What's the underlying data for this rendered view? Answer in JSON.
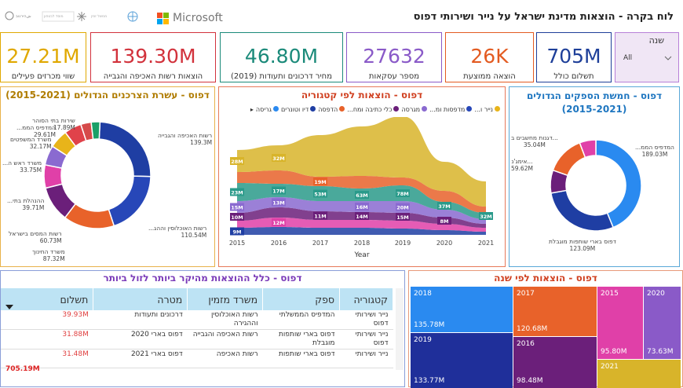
{
  "title": "לוח בקרה - הוצאות מדינת ישראל על נייר ושירותי דפוס",
  "logos": {
    "ms": "Microsoft"
  },
  "kpis": [
    {
      "value": "27.21M",
      "label": "שווי מכרזים פעילים",
      "color": "#e0a800"
    },
    {
      "value": "139.30M",
      "label": "הוצאות רשות האכיפה והגבייה",
      "color": "#d2323c"
    },
    {
      "value": "46.80M",
      "label": "מחיר דרכונים ותעודות (2019)",
      "color": "#1b8a7a"
    },
    {
      "value": "27632",
      "label": "מספר עסקאות",
      "color": "#8a5ac8"
    },
    {
      "value": "26K",
      "label": "הוצאה ממוצעת",
      "color": "#e35b21"
    },
    {
      "value": "705M",
      "label": "תשלום כולל",
      "color": "#1e3f99"
    }
  ],
  "slicer": {
    "title": "שנה",
    "value": "All"
  },
  "donut_left": {
    "title": "דפוס - עשרת הצרכנים הגדולים (2015-2021)",
    "labels": [
      {
        "t": "רשות האכיפה והגבייה",
        "v": "139.3M"
      },
      {
        "t": "רשות האוכלוסין וההג...",
        "v": "110.54M"
      },
      {
        "t": "משרד החינוך",
        "v": "87.32M"
      },
      {
        "t": "רשות המסים בישראל",
        "v": "60.73M"
      },
      {
        "t": "ההנהלת בתי...",
        "v": "39.71M"
      },
      {
        "t": "משרד ראש ה...",
        "v": "33.75M"
      },
      {
        "t": "משרד המשפטים",
        "v": "32.17M"
      },
      {
        "t": "המדפיס הממ...",
        "v": "29.61M"
      },
      {
        "t": "שירות בתי הסוהר",
        "v": "17.89M"
      }
    ]
  },
  "stream": {
    "title": "דפוס - הוצאות לפי קטגוריה",
    "legend": [
      "נייר ו...",
      "מדפסות ומ...",
      "מגרסה",
      "כלי כתיבה ומח...",
      "הדפסה",
      "דיו וטונרים",
      "גריסה"
    ],
    "xlabel": "Year",
    "years": [
      "2015",
      "2016",
      "2017",
      "2018",
      "2019",
      "2020",
      "2021"
    ],
    "labels": [
      "28M",
      "32M",
      "53M",
      "63M",
      "78M",
      "37M",
      "32M",
      "23M",
      "17M",
      "19M",
      "16M",
      "20M",
      "15M",
      "13M",
      "14M",
      "15M",
      "10M",
      "11M",
      "12M",
      "8M",
      "9M"
    ]
  },
  "donut_right": {
    "title": "דפוס - חמשת הספקים הגדולים (2015-2021)",
    "labels": [
      {
        "t": "המדפיס הממ...",
        "v": "189.03M"
      },
      {
        "t": "דפוס בארי שותפות מוגבלת",
        "v": "123.09M"
      },
      {
        "t": "...דגנות מחשבים ב",
        "v": "35.04M"
      },
      {
        "t": "...אימג'נ",
        "v": "59.62M"
      }
    ]
  },
  "table": {
    "title": "דפוס - כלל ההוצאות מהיקר ביותר לזול ביותר",
    "headers": [
      "קטגוריה",
      "ספק",
      "משרד מזמין",
      "מטרה",
      "תשלום"
    ],
    "rows": [
      [
        "נייר ושירותי דפוס",
        "המדפיס הממשלתי",
        "רשות האוכלוסין וההגירה",
        "דרכונים ותעודות",
        "39.93M"
      ],
      [
        "נייר ושירותי דפוס",
        "דפוס בארי שותפות מוגבלת",
        "רשות האכיפה והגבייה",
        "דפוס בארי 2020",
        "31.88M"
      ],
      [
        "נייר ושירותי",
        "דפוס בארי שותפות",
        "רשות האכיפה",
        "דפוס בארי 2021",
        "31.48M"
      ]
    ],
    "total": "705.19M"
  },
  "treemap": {
    "title": "דפוס - הוצאות לפי שנה",
    "cells": [
      {
        "year": "2018",
        "value": "135.78M"
      },
      {
        "year": "2017",
        "value": "120.68M"
      },
      {
        "year": "2015",
        "value": "95.80M"
      },
      {
        "year": "2020",
        "value": "73.63M"
      },
      {
        "year": "2019",
        "value": "133.77M"
      },
      {
        "year": "2016",
        "value": "98.48M"
      },
      {
        "year": "2021",
        "value": ""
      }
    ]
  }
}
